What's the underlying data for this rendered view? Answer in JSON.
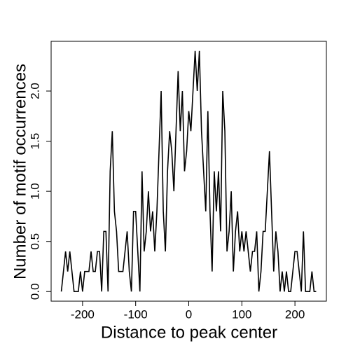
{
  "chart_data": {
    "type": "line",
    "x_label": "Distance to peak center",
    "y_label": "Number of motif occurrences",
    "x": [
      -240,
      -236,
      -232,
      -228,
      -224,
      -220,
      -216,
      -212,
      -208,
      -204,
      -200,
      -196,
      -192,
      -188,
      -184,
      -180,
      -176,
      -172,
      -168,
      -164,
      -160,
      -156,
      -152,
      -148,
      -144,
      -140,
      -136,
      -132,
      -128,
      -124,
      -120,
      -116,
      -112,
      -108,
      -104,
      -100,
      -96,
      -92,
      -88,
      -84,
      -80,
      -76,
      -72,
      -68,
      -64,
      -60,
      -56,
      -52,
      -48,
      -44,
      -40,
      -36,
      -32,
      -28,
      -24,
      -20,
      -16,
      -12,
      -8,
      -4,
      0,
      4,
      8,
      12,
      16,
      20,
      24,
      28,
      32,
      36,
      40,
      44,
      48,
      52,
      56,
      60,
      64,
      68,
      72,
      76,
      80,
      84,
      88,
      92,
      96,
      100,
      104,
      108,
      112,
      116,
      120,
      124,
      128,
      132,
      136,
      140,
      144,
      148,
      152,
      156,
      160,
      164,
      168,
      172,
      176,
      180,
      184,
      188,
      192,
      196,
      200,
      204,
      208,
      212,
      216,
      220,
      224,
      228,
      232,
      236,
      240
    ],
    "series": [
      {
        "color": "#000000",
        "values": [
          0,
          0.2,
          0.4,
          0.2,
          0.4,
          0.2,
          0,
          0,
          0,
          0.2,
          0,
          0.2,
          0.2,
          0.2,
          0.4,
          0.2,
          0.2,
          0.4,
          0.4,
          0,
          0.6,
          0.6,
          0,
          1.2,
          1.6,
          0.8,
          0.6,
          0.2,
          0.2,
          0.2,
          0.4,
          0.6,
          0.2,
          0,
          0.8,
          0.8,
          0.4,
          0,
          1.2,
          0.4,
          0.6,
          1.0,
          0.6,
          0.8,
          0.4,
          0.8,
          1.4,
          2.0,
          0.8,
          0.4,
          1.2,
          1.6,
          1.4,
          1.0,
          1.6,
          2.2,
          1.6,
          2.0,
          1.2,
          1.4,
          1.8,
          1.6,
          2.0,
          2.4,
          2.0,
          2.4,
          1.6,
          1.2,
          0.8,
          1.8,
          0.8,
          0.2,
          1.2,
          0.8,
          1.2,
          0.6,
          2.0,
          1.6,
          0.4,
          0.6,
          1.0,
          0.2,
          0.6,
          0.8,
          0.4,
          0.6,
          0.4,
          0.6,
          0.4,
          0.2,
          0.4,
          0.4,
          0.6,
          0,
          0.2,
          0.6,
          0.6,
          1.0,
          1.4,
          0.8,
          0.2,
          0.6,
          0.4,
          0,
          0.2,
          0,
          0.2,
          0,
          0,
          0.2,
          0.4,
          0.4,
          0.2,
          0,
          0.6,
          0,
          0,
          0,
          0.2,
          0,
          0
        ]
      }
    ],
    "xlim": [
      -259.2,
      259.2
    ],
    "ylim": [
      -0.096,
      2.496
    ],
    "xticks": [
      -200,
      -100,
      0,
      100,
      200
    ],
    "yticks": [
      {
        "value": 0,
        "label": "0.0"
      },
      0.5,
      {
        "value": 1,
        "label": "1.0"
      },
      1.5,
      {
        "value": 2,
        "label": "2.0"
      }
    ]
  }
}
